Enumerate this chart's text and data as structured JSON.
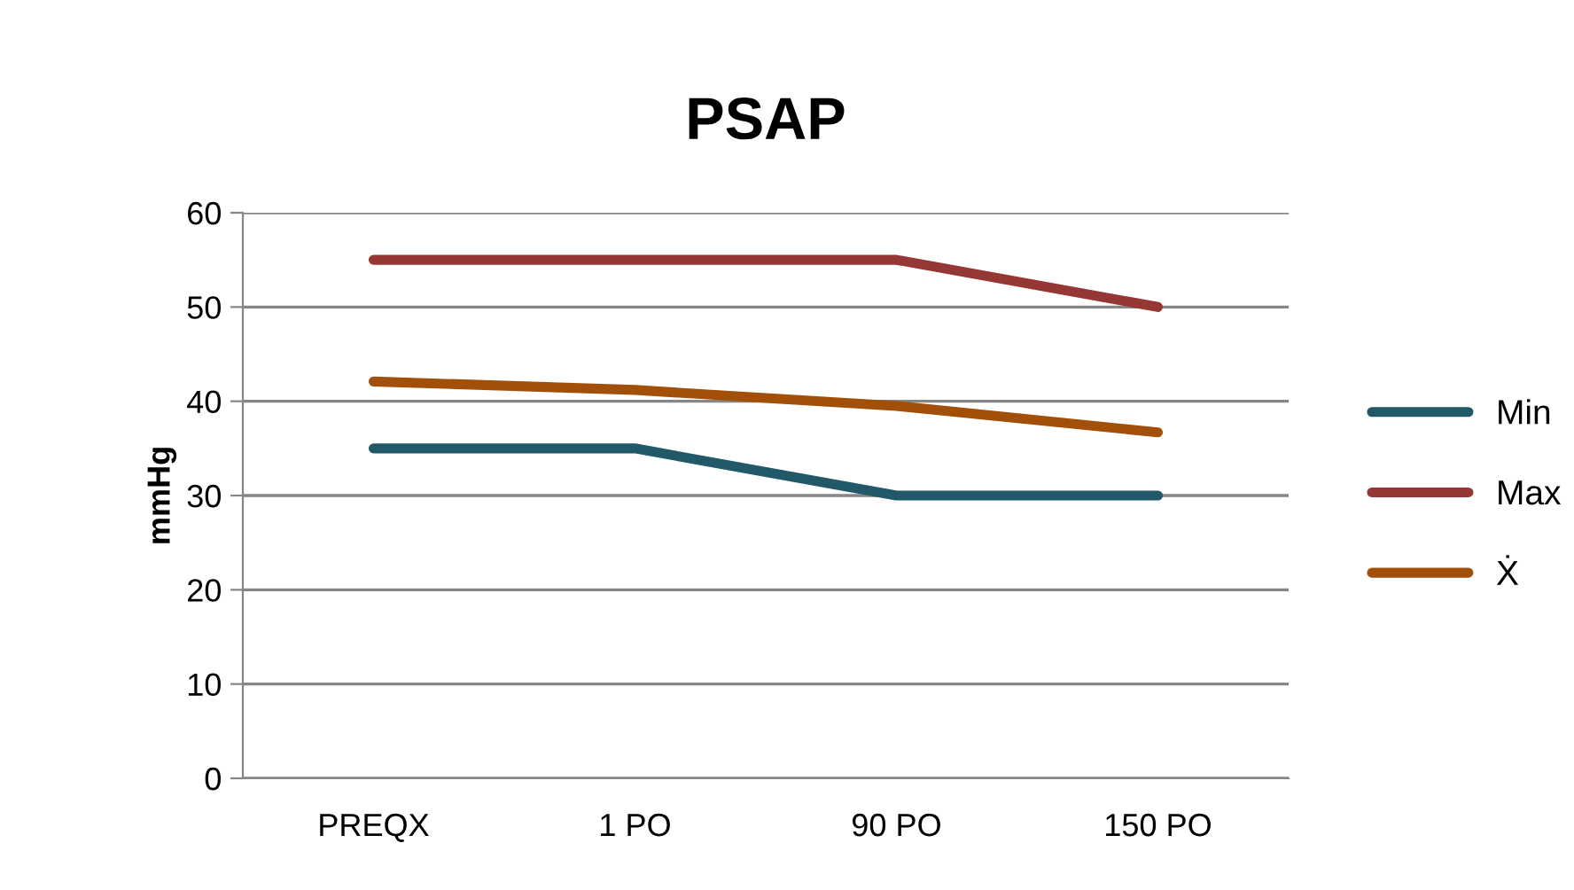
{
  "chart_data": {
    "type": "line",
    "title": "PSAP",
    "ylabel": "mmHg",
    "categories": [
      "PREQX",
      "1 PO",
      "90 PO",
      "150 PO"
    ],
    "series": [
      {
        "name": "Min",
        "color": "#215968",
        "values": [
          35,
          35,
          30,
          30
        ]
      },
      {
        "name": "Max",
        "color": "#953735",
        "values": [
          55,
          55,
          55,
          50
        ]
      },
      {
        "name": "Ẋ",
        "color": "#a24f0a",
        "values": [
          42.1,
          41.2,
          39.5,
          36.7
        ]
      }
    ],
    "ylim": [
      0,
      60
    ],
    "yticks": [
      0,
      10,
      20,
      30,
      40,
      50,
      60
    ],
    "grid": "y",
    "legend": "right",
    "marker": "none",
    "line_style": "solid"
  }
}
